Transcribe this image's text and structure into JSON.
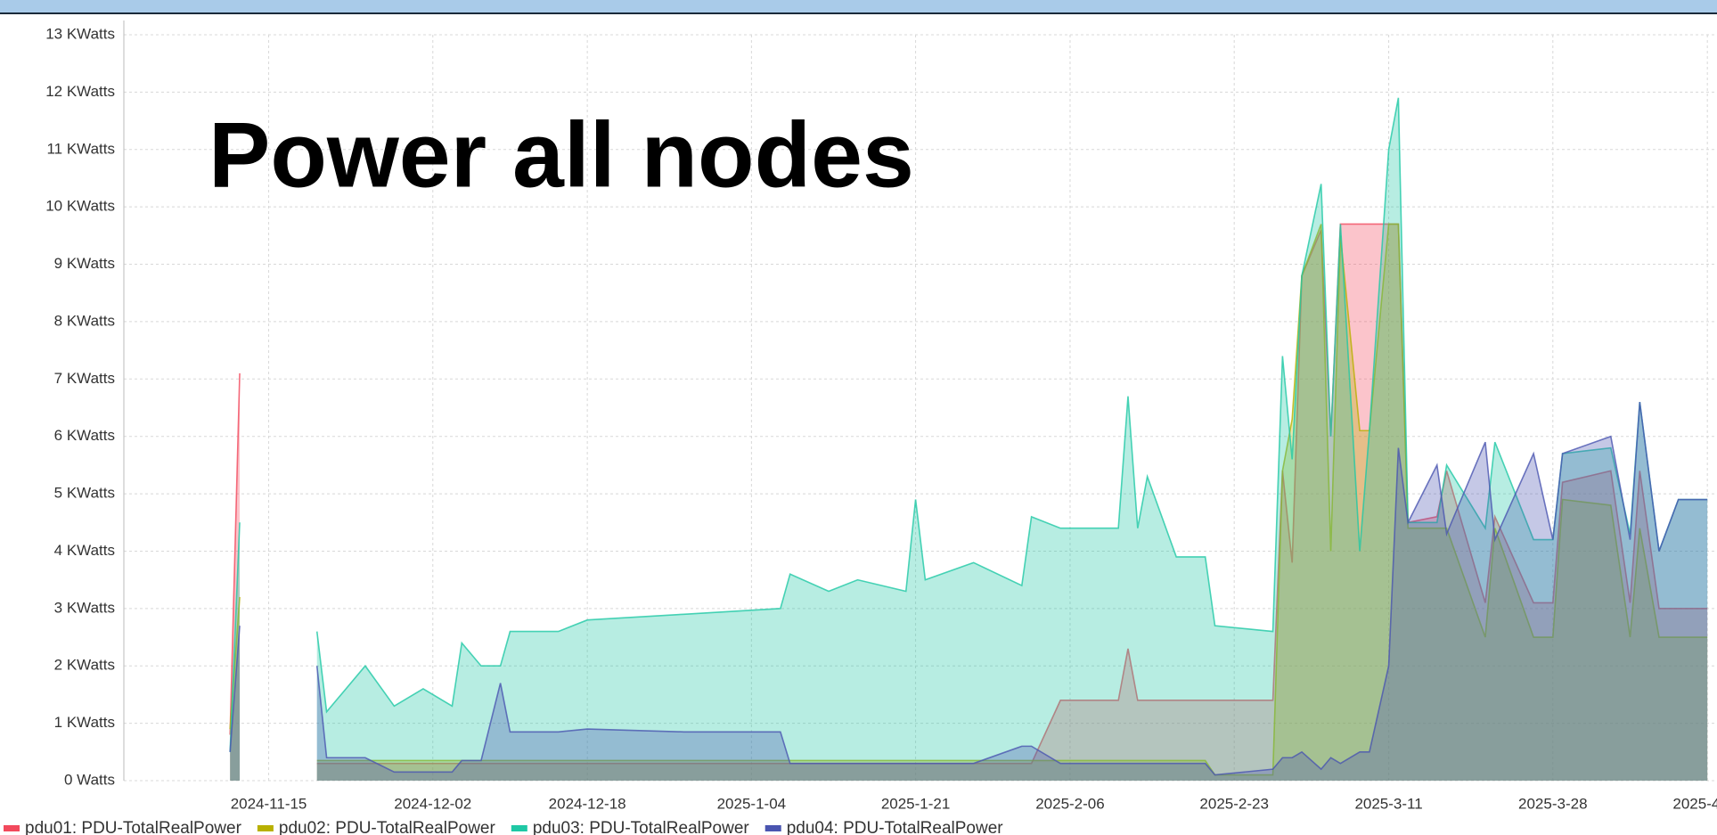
{
  "chart_data": {
    "type": "area",
    "title": "Power all nodes",
    "x": [
      "2024-11-11",
      "2024-11-12",
      "2024-11-13",
      "2024-11-20",
      "2024-11-21",
      "2024-11-25",
      "2024-11-28",
      "2024-12-01",
      "2024-12-04",
      "2024-12-05",
      "2024-12-07",
      "2024-12-09",
      "2024-12-10",
      "2024-12-15",
      "2024-12-18",
      "2024-12-28",
      "2025-01-07",
      "2025-01-08",
      "2025-01-12",
      "2025-01-15",
      "2025-01-20",
      "2025-01-21",
      "2025-01-22",
      "2025-01-27",
      "2025-02-01",
      "2025-02-02",
      "2025-02-05",
      "2025-02-11",
      "2025-02-12",
      "2025-02-13",
      "2025-02-14",
      "2025-02-17",
      "2025-02-20",
      "2025-02-21",
      "2025-02-27",
      "2025-02-28",
      "2025-03-01",
      "2025-03-02",
      "2025-03-04",
      "2025-03-05",
      "2025-03-06",
      "2025-03-08",
      "2025-03-09",
      "2025-03-11",
      "2025-03-12",
      "2025-03-13",
      "2025-03-16",
      "2025-03-17",
      "2025-03-21",
      "2025-03-22",
      "2025-03-26",
      "2025-03-28",
      "2025-03-29",
      "2025-04-03",
      "2025-04-05",
      "2025-04-06",
      "2025-04-08",
      "2025-04-10",
      "2025-04-13"
    ],
    "series": [
      {
        "name": "pdu01: PDU-TotalRealPower",
        "color": "#f2495c",
        "values": [
          0.8,
          7.1,
          null,
          0.3,
          0.3,
          0.3,
          0.3,
          0.3,
          0.3,
          0.3,
          0.3,
          0.3,
          0.3,
          0.3,
          0.3,
          0.3,
          0.3,
          0.3,
          0.3,
          0.3,
          0.3,
          0.3,
          0.3,
          0.3,
          0.3,
          0.3,
          1.4,
          1.4,
          2.3,
          1.4,
          1.4,
          1.4,
          1.4,
          1.4,
          1.4,
          5.4,
          3.8,
          8.8,
          9.6,
          6.0,
          9.7,
          9.7,
          9.7,
          9.7,
          9.7,
          4.5,
          4.6,
          5.4,
          3.1,
          4.6,
          3.1,
          3.1,
          5.2,
          5.4,
          3.1,
          5.4,
          3.0,
          3.0,
          3.0
        ]
      },
      {
        "name": "pdu02: PDU-TotalRealPower",
        "color": "#b8b000",
        "values": [
          0.9,
          3.2,
          null,
          0.35,
          0.35,
          0.35,
          0.35,
          0.35,
          0.35,
          0.35,
          0.35,
          0.35,
          0.35,
          0.35,
          0.35,
          0.35,
          0.35,
          0.35,
          0.35,
          0.35,
          0.35,
          0.35,
          0.35,
          0.35,
          0.35,
          0.35,
          0.35,
          0.35,
          0.35,
          0.35,
          0.35,
          0.35,
          0.35,
          0.1,
          0.1,
          5.4,
          6.3,
          8.8,
          9.7,
          4.0,
          9.5,
          6.1,
          6.1,
          9.7,
          9.7,
          4.4,
          4.4,
          4.4,
          2.5,
          4.4,
          2.5,
          2.5,
          4.9,
          4.8,
          2.5,
          4.4,
          2.5,
          2.5,
          2.5
        ]
      },
      {
        "name": "pdu03: PDU-TotalRealPower",
        "color": "#1fc8a5",
        "values": [
          0.5,
          4.5,
          null,
          2.6,
          1.2,
          2.0,
          1.3,
          1.6,
          1.3,
          2.4,
          2.0,
          2.0,
          2.6,
          2.6,
          2.8,
          2.9,
          3.0,
          3.6,
          3.3,
          3.5,
          3.3,
          4.9,
          3.5,
          3.8,
          3.4,
          4.6,
          4.4,
          4.4,
          6.7,
          4.4,
          5.3,
          3.9,
          3.9,
          2.7,
          2.6,
          7.4,
          5.6,
          8.8,
          10.4,
          6.0,
          9.7,
          4.0,
          6.1,
          11.0,
          11.9,
          4.5,
          4.5,
          5.5,
          4.4,
          5.9,
          4.2,
          4.2,
          5.7,
          5.8,
          4.3,
          6.6,
          4.0,
          4.9,
          4.9
        ]
      },
      {
        "name": "pdu04: PDU-TotalRealPower",
        "color": "#4a55b0",
        "values": [
          0.5,
          2.7,
          null,
          2.0,
          0.4,
          0.4,
          0.15,
          0.15,
          0.15,
          0.35,
          0.35,
          1.7,
          0.85,
          0.85,
          0.9,
          0.85,
          0.85,
          0.3,
          0.3,
          0.3,
          0.3,
          0.3,
          0.3,
          0.3,
          0.6,
          0.6,
          0.3,
          0.3,
          0.3,
          0.3,
          0.3,
          0.3,
          0.3,
          0.1,
          0.2,
          0.4,
          0.4,
          0.5,
          0.2,
          0.4,
          0.3,
          0.5,
          0.5,
          2.0,
          5.8,
          4.5,
          5.5,
          4.3,
          5.9,
          4.2,
          5.7,
          4.2,
          5.7,
          6.0,
          4.2,
          6.6,
          4.0,
          4.9,
          4.9
        ]
      }
    ],
    "xlim": [
      "2024-10-31",
      "2025-04-14"
    ],
    "xticks": [
      {
        "value": "2024-11-15",
        "label": "2024-11-15"
      },
      {
        "value": "2024-12-02",
        "label": "2024-12-02"
      },
      {
        "value": "2024-12-18",
        "label": "2024-12-18"
      },
      {
        "value": "2025-01-04",
        "label": "2025-1-04"
      },
      {
        "value": "2025-01-21",
        "label": "2025-1-21"
      },
      {
        "value": "2025-02-06",
        "label": "2025-2-06"
      },
      {
        "value": "2025-02-23",
        "label": "2025-2-23"
      },
      {
        "value": "2025-03-11",
        "label": "2025-3-11"
      },
      {
        "value": "2025-03-28",
        "label": "2025-3-28"
      },
      {
        "value": "2025-04-13",
        "label": "2025-4-13"
      }
    ],
    "ylim": [
      0,
      13
    ],
    "yticks": [
      {
        "value": 0,
        "label": "0 Watts"
      },
      {
        "value": 1,
        "label": "1 KWatts"
      },
      {
        "value": 2,
        "label": "2 KWatts"
      },
      {
        "value": 3,
        "label": "3 KWatts"
      },
      {
        "value": 4,
        "label": "4 KWatts"
      },
      {
        "value": 5,
        "label": "5 KWatts"
      },
      {
        "value": 6,
        "label": "6 KWatts"
      },
      {
        "value": 7,
        "label": "7 KWatts"
      },
      {
        "value": 8,
        "label": "8 KWatts"
      },
      {
        "value": 9,
        "label": "9 KWatts"
      },
      {
        "value": 10,
        "label": "10 KWatts"
      },
      {
        "value": 11,
        "label": "11 KWatts"
      },
      {
        "value": 12,
        "label": "12 KWatts"
      },
      {
        "value": 13,
        "label": "13 KWatts"
      }
    ],
    "grid": true
  }
}
